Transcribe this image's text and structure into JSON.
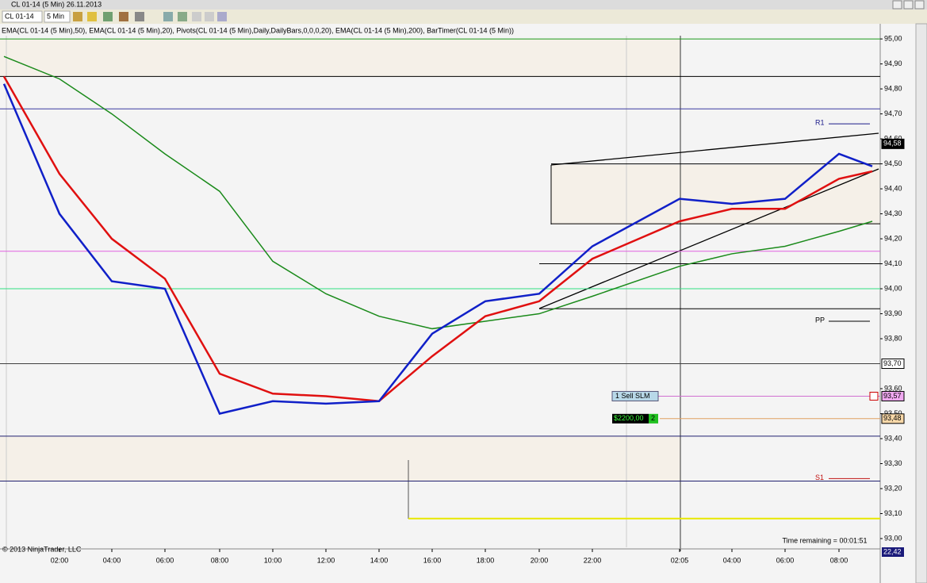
{
  "window": {
    "title": "CL 01-14 (5 Min)  26.11.2013"
  },
  "toolbar": {
    "instrument": "CL 01-14",
    "interval": "5 Min"
  },
  "indicators_label": "EMA(CL 01-14 (5 Min),50), EMA(CL 01-14 (5 Min),20), Pivots(CL 01-14 (5 Min),Daily,DailyBars,0,0,0,20), EMA(CL 01-14 (5 Min),200), BarTimer(CL 01-14 (5 Min))",
  "chart_data": {
    "type": "line",
    "categories": [
      null,
      "02:00",
      "04:00",
      "06:00",
      "08:00",
      "10:00",
      "12:00",
      "14:00",
      "16:00",
      "18:00",
      "20:00",
      "22:00",
      "02:05",
      "04:00",
      "06:00",
      "08:00",
      null
    ],
    "series": [
      {
        "name": "EMA(CL 01-14 (5 Min),200)",
        "color": "#1a8a1a",
        "values": [
          94.93,
          94.84,
          94.7,
          94.54,
          94.39,
          94.11,
          93.98,
          93.89,
          93.84,
          93.87,
          93.9,
          93.97,
          94.09,
          94.14,
          94.17,
          94.23,
          94.27
        ]
      },
      {
        "name": "EMA(CL 01-14 (5 Min),50)",
        "color": "#e01010",
        "values": [
          94.85,
          94.46,
          94.2,
          94.04,
          93.66,
          93.58,
          93.57,
          93.55,
          93.73,
          93.89,
          93.95,
          94.12,
          94.27,
          94.32,
          94.32,
          94.44,
          94.47
        ]
      },
      {
        "name": "EMA(CL 01-14 (5 Min),20)",
        "color": "#1020c8",
        "values": [
          94.82,
          94.3,
          94.03,
          94.0,
          93.5,
          93.55,
          93.54,
          93.55,
          93.82,
          93.95,
          93.98,
          94.17,
          94.36,
          94.34,
          94.36,
          94.54,
          94.49
        ]
      }
    ],
    "ylim": [
      92.965,
      95.013
    ],
    "yticks": [
      {
        "value": 95.0,
        "label": "95,00"
      },
      {
        "value": 94.9,
        "label": "94,90"
      },
      {
        "value": 94.8,
        "label": "94,80"
      },
      {
        "value": 94.7,
        "label": "94,70"
      },
      {
        "value": 94.6,
        "label": "94,60"
      },
      {
        "value": 94.5,
        "label": "94,50"
      },
      {
        "value": 94.4,
        "label": "94,40"
      },
      {
        "value": 94.3,
        "label": "94,30"
      },
      {
        "value": 94.2,
        "label": "94,20"
      },
      {
        "value": 94.1,
        "label": "94,10"
      },
      {
        "value": 94.0,
        "label": "94,00"
      },
      {
        "value": 93.9,
        "label": "93,90"
      },
      {
        "value": 93.8,
        "label": "93,80"
      },
      {
        "value": 93.6,
        "label": "93,60"
      },
      {
        "value": 93.5,
        "label": "93,50"
      },
      {
        "value": 93.4,
        "label": "93,40"
      },
      {
        "value": 93.3,
        "label": "93,30"
      },
      {
        "value": 93.2,
        "label": "93,20"
      },
      {
        "value": 93.1,
        "label": "93,10"
      },
      {
        "value": 93.0,
        "label": "93,00"
      }
    ],
    "levels": [
      {
        "value": 95.0,
        "color": "#1a9a1a"
      },
      {
        "value": 94.85,
        "color": "#000000"
      },
      {
        "value": 94.72,
        "color": "#3a3aa0"
      },
      {
        "value": 94.5,
        "color": "#000000"
      },
      {
        "value": 94.26,
        "color": "#000000"
      },
      {
        "value": 94.15,
        "color": "#e060e0"
      },
      {
        "value": 94.1,
        "color": "#000000"
      },
      {
        "value": 94.0,
        "color": "#30e080"
      },
      {
        "value": 93.92,
        "color": "#000000"
      },
      {
        "value": 93.7,
        "color": "#404040"
      },
      {
        "value": 93.41,
        "color": "#202070"
      },
      {
        "value": 93.23,
        "color": "#202070"
      },
      {
        "value": 93.08,
        "color": "#e8e800"
      }
    ],
    "pivots": [
      {
        "label": "R1",
        "value": 94.66,
        "color": "#1a1a8a"
      },
      {
        "label": "PP",
        "value": 93.87,
        "color": "#000000"
      },
      {
        "label": "S1",
        "value": 93.24,
        "color": "#c01010"
      }
    ],
    "price_markers": [
      {
        "value": 94.58,
        "label": "94,58",
        "bg": "#000000",
        "fg": "#ffffff"
      },
      {
        "value": 93.7,
        "label": "93,70",
        "bg": "#ffffff",
        "fg": "#000000"
      },
      {
        "value": 93.57,
        "label": "93,57",
        "bg": "#f0a8f0",
        "fg": "#000000"
      },
      {
        "value": 93.48,
        "label": "93,48",
        "bg": "#f8d8a8",
        "fg": "#000000"
      }
    ],
    "orders": [
      {
        "label": "1  Sell SLM",
        "value": 93.57
      },
      {
        "label": "$2200,00",
        "qty": "2",
        "value": 93.48
      }
    ],
    "bottom_marker": "22,42",
    "time_remaining": "Time remaining = 00:01:51",
    "copyright": "© 2013 NinjaTrader, LLC"
  }
}
